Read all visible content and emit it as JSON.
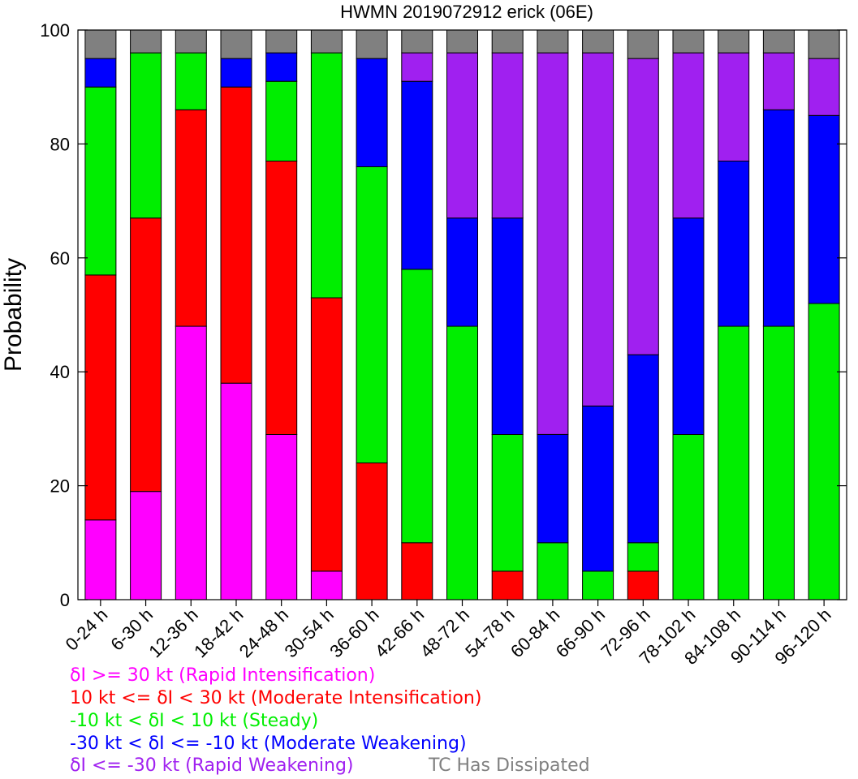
{
  "chart_data": {
    "type": "bar",
    "stacked": true,
    "title": "HWMN 2019072912 erick (06E)",
    "xlabel": "",
    "ylabel": "Probability",
    "ylim": [
      0,
      100
    ],
    "yticks": [
      0,
      20,
      40,
      60,
      80,
      100
    ],
    "grid": false,
    "legend_position": "bottom-left",
    "categories": [
      "0-24 h",
      "6-30 h",
      "12-36 h",
      "18-42 h",
      "24-48 h",
      "30-54 h",
      "36-60 h",
      "42-66 h",
      "48-72 h",
      "54-78 h",
      "60-84 h",
      "66-90 h",
      "72-96 h",
      "78-102 h",
      "84-108 h",
      "90-114 h",
      "96-120 h"
    ],
    "series": [
      {
        "name": "δI >= 30 kt (Rapid Intensification)",
        "color": "#ff00ff",
        "values": [
          14,
          19,
          48,
          38,
          29,
          5,
          0,
          0,
          0,
          0,
          0,
          0,
          0,
          0,
          0,
          0,
          0
        ]
      },
      {
        "name": "10 kt <= δI < 30 kt (Moderate Intensification)",
        "color": "#ff0000",
        "values": [
          43,
          48,
          38,
          52,
          48,
          48,
          24,
          10,
          0,
          5,
          0,
          0,
          5,
          0,
          0,
          0,
          0
        ]
      },
      {
        "name": "-10 kt < δI < 10 kt (Steady)",
        "color": "#00ee00",
        "values": [
          33,
          29,
          10,
          0,
          14,
          43,
          52,
          48,
          48,
          24,
          10,
          5,
          5,
          29,
          48,
          48,
          52
        ]
      },
      {
        "name": "-30 kt < δI <= -10 kt (Moderate Weakening)",
        "color": "#0000ff",
        "values": [
          5,
          0,
          0,
          5,
          5,
          0,
          19,
          33,
          19,
          38,
          19,
          29,
          33,
          38,
          29,
          38,
          33
        ]
      },
      {
        "name": "δI <= -30 kt (Rapid Weakening)",
        "color": "#a020f0",
        "values": [
          0,
          0,
          0,
          0,
          0,
          0,
          0,
          5,
          29,
          29,
          67,
          62,
          52,
          29,
          19,
          10,
          10
        ]
      },
      {
        "name": "TC Has Dissipated",
        "color": "#808080",
        "values": [
          5,
          4,
          4,
          5,
          4,
          4,
          5,
          4,
          4,
          4,
          4,
          4,
          5,
          4,
          4,
          4,
          5
        ]
      }
    ]
  },
  "legend_text_colors": [
    "#ff00ff",
    "#ff0000",
    "#00ee00",
    "#0000ff",
    "#a020f0",
    "#808080"
  ]
}
